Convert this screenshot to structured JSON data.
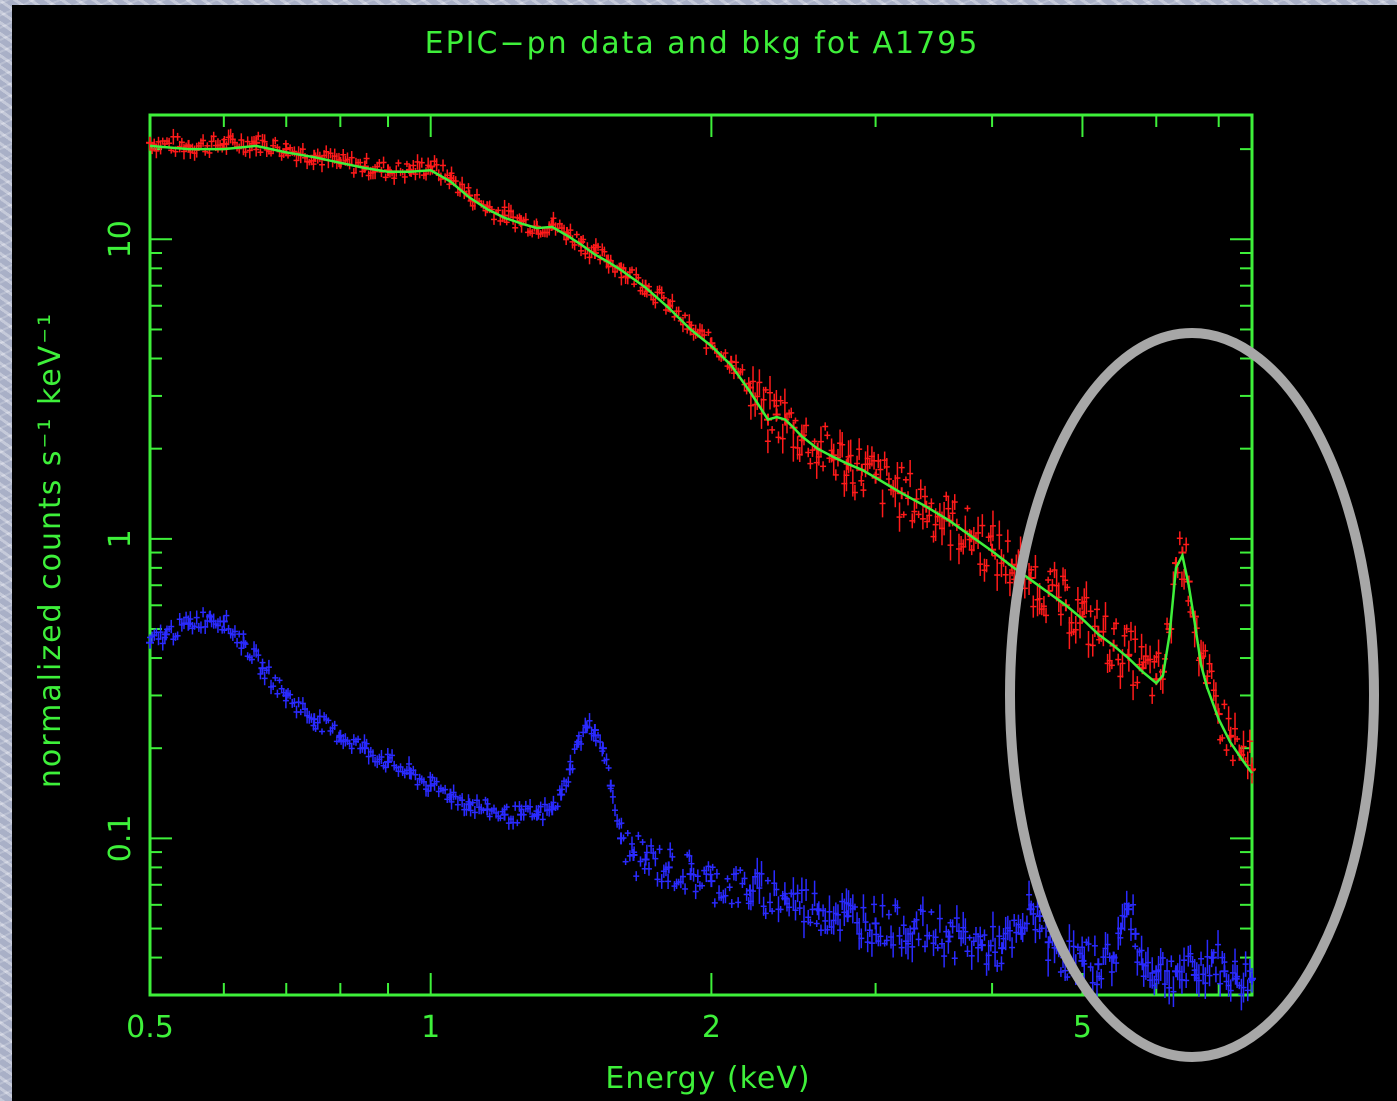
{
  "chart_data": {
    "type": "scatter",
    "title": "EPIC−pn data and bkg fot A1795",
    "xlabel": "Energy (keV)",
    "ylabel": "normalized counts s⁻¹ keV⁻¹",
    "x_scale": "log",
    "y_scale": "log",
    "xlim": [
      0.5,
      7.6
    ],
    "ylim": [
      0.03,
      26
    ],
    "x_ticks": [
      0.5,
      1,
      2,
      5
    ],
    "x_tick_labels": [
      "0.5",
      "1",
      "2",
      "5"
    ],
    "y_ticks": [
      0.1,
      1,
      10
    ],
    "y_tick_labels": [
      "0.1",
      "1",
      "10"
    ],
    "series": [
      {
        "color": "#ff1a1a",
        "marker": "cross-errorbar",
        "x": [
          0.5,
          0.55,
          0.6,
          0.65,
          0.7,
          0.75,
          0.8,
          0.85,
          0.9,
          0.95,
          1.0,
          1.05,
          1.1,
          1.15,
          1.2,
          1.25,
          1.3,
          1.35,
          1.4,
          1.45,
          1.5,
          1.55,
          1.6,
          1.7,
          1.8,
          1.9,
          2.0,
          2.1,
          2.2,
          2.3,
          2.35,
          2.4,
          2.45,
          2.5,
          2.6,
          2.7,
          2.8,
          2.9,
          3.0,
          3.2,
          3.4,
          3.6,
          3.8,
          4.0,
          4.2,
          4.4,
          4.6,
          4.8,
          5.0,
          5.2,
          5.4,
          5.6,
          5.8,
          6.0,
          6.1,
          6.2,
          6.3,
          6.4,
          6.5,
          6.6,
          6.7,
          6.8,
          7.0,
          7.2,
          7.4,
          7.6
        ],
        "y": [
          21,
          20.5,
          20.8,
          21,
          20,
          19,
          18,
          17.5,
          17,
          17,
          17.5,
          16,
          14,
          12.8,
          12,
          11.5,
          11,
          11.2,
          10.5,
          9.8,
          9.0,
          8.5,
          8.0,
          7.0,
          6.0,
          5.0,
          4.5,
          3.9,
          3.2,
          2.5,
          2.6,
          2.5,
          2.35,
          2.2,
          2.0,
          1.9,
          1.78,
          1.7,
          1.6,
          1.42,
          1.28,
          1.15,
          1.02,
          0.92,
          0.82,
          0.74,
          0.67,
          0.6,
          0.55,
          0.49,
          0.44,
          0.41,
          0.37,
          0.34,
          0.36,
          0.5,
          0.83,
          0.9,
          0.72,
          0.55,
          0.4,
          0.33,
          0.26,
          0.22,
          0.19,
          0.17
        ]
      },
      {
        "color": "#2a2aff",
        "marker": "cross-errorbar",
        "x": [
          0.5,
          0.52,
          0.55,
          0.58,
          0.6,
          0.63,
          0.66,
          0.7,
          0.75,
          0.8,
          0.85,
          0.9,
          0.95,
          1.0,
          1.05,
          1.1,
          1.15,
          1.2,
          1.25,
          1.3,
          1.35,
          1.38,
          1.41,
          1.44,
          1.47,
          1.5,
          1.53,
          1.56,
          1.6,
          1.65,
          1.7,
          1.8,
          1.9,
          2.0,
          2.2,
          2.4,
          2.6,
          2.8,
          3.0,
          3.3,
          3.6,
          3.9,
          4.1,
          4.3,
          4.4,
          4.5,
          4.6,
          4.8,
          5.0,
          5.2,
          5.4,
          5.5,
          5.6,
          5.7,
          5.8,
          6.0,
          6.3,
          6.6,
          6.9,
          7.1,
          7.3,
          7.6
        ],
        "y": [
          0.45,
          0.48,
          0.52,
          0.55,
          0.53,
          0.45,
          0.37,
          0.3,
          0.25,
          0.22,
          0.2,
          0.18,
          0.165,
          0.15,
          0.14,
          0.13,
          0.125,
          0.12,
          0.12,
          0.12,
          0.125,
          0.14,
          0.17,
          0.21,
          0.235,
          0.23,
          0.2,
          0.15,
          0.1,
          0.088,
          0.085,
          0.08,
          0.076,
          0.072,
          0.067,
          0.063,
          0.058,
          0.055,
          0.052,
          0.05,
          0.047,
          0.044,
          0.043,
          0.048,
          0.058,
          0.055,
          0.045,
          0.04,
          0.039,
          0.038,
          0.04,
          0.05,
          0.058,
          0.048,
          0.038,
          0.036,
          0.036,
          0.035,
          0.04,
          0.036,
          0.034,
          0.034
        ]
      },
      {
        "color": "#3ef03a",
        "marker": "line",
        "x": [
          0.5,
          0.55,
          0.6,
          0.65,
          0.7,
          0.75,
          0.8,
          0.85,
          0.9,
          0.95,
          1.0,
          1.05,
          1.1,
          1.15,
          1.2,
          1.25,
          1.3,
          1.35,
          1.4,
          1.45,
          1.5,
          1.55,
          1.6,
          1.7,
          1.8,
          1.9,
          2.0,
          2.1,
          2.2,
          2.3,
          2.35,
          2.4,
          2.45,
          2.5,
          2.6,
          2.7,
          2.8,
          2.9,
          3.0,
          3.2,
          3.4,
          3.6,
          3.8,
          4.0,
          4.2,
          4.4,
          4.6,
          4.8,
          5.0,
          5.2,
          5.4,
          5.6,
          5.8,
          6.0,
          6.1,
          6.2,
          6.3,
          6.4,
          6.5,
          6.6,
          6.7,
          6.8,
          7.0,
          7.2,
          7.4,
          7.6
        ],
        "y": [
          20.5,
          20,
          20,
          20.5,
          19.5,
          18.8,
          18,
          17.3,
          16.8,
          16.8,
          17,
          15.6,
          13.8,
          12.6,
          11.8,
          11.3,
          10.9,
          11,
          10.3,
          9.6,
          8.9,
          8.4,
          7.9,
          6.9,
          5.9,
          5.0,
          4.4,
          3.8,
          3.1,
          2.5,
          2.55,
          2.5,
          2.35,
          2.2,
          2.0,
          1.88,
          1.78,
          1.7,
          1.6,
          1.42,
          1.28,
          1.15,
          1.02,
          0.91,
          0.81,
          0.73,
          0.66,
          0.6,
          0.54,
          0.48,
          0.44,
          0.4,
          0.36,
          0.33,
          0.35,
          0.48,
          0.8,
          0.88,
          0.7,
          0.52,
          0.38,
          0.32,
          0.25,
          0.21,
          0.185,
          0.165
        ]
      }
    ]
  },
  "annotation": {
    "shape": "ellipse",
    "color": "#a7a7a7"
  }
}
